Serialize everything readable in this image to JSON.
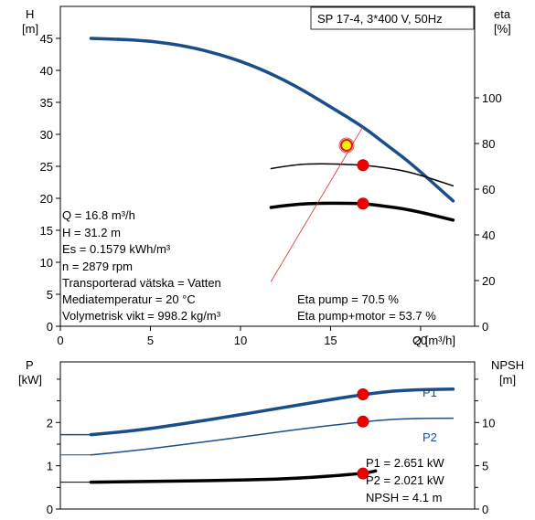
{
  "chart_data": [
    {
      "type": "line",
      "title": "SP 17-4, 3*400 V, 50Hz",
      "xlabel": "Q [m³/h]",
      "xlim": [
        0,
        23
      ],
      "xticks": [
        0,
        5,
        10,
        15,
        20
      ],
      "y_left": {
        "label_line1": "H",
        "label_line2": "[m]",
        "lim": [
          0,
          50
        ],
        "ticks": [
          0,
          5,
          10,
          15,
          20,
          25,
          30,
          35,
          40,
          45
        ]
      },
      "y_right": {
        "label_line1": "eta",
        "label_line2": "[%]",
        "lim": [
          0,
          140
        ],
        "ticks": [
          0,
          20,
          40,
          60,
          80,
          100
        ]
      },
      "series": [
        {
          "axis": "left",
          "color": "#1a4e8a",
          "width": 3.5,
          "x": [
            1.7,
            3,
            5,
            7,
            9,
            11,
            13,
            15,
            16.8,
            18,
            19.5,
            21.8
          ],
          "y": [
            45.0,
            44.9,
            44.6,
            43.8,
            42.4,
            40.4,
            37.7,
            34.3,
            31.2,
            28.6,
            25.4,
            19.6
          ]
        },
        {
          "axis": "right",
          "color": "#000000",
          "width": 1.5,
          "x": [
            11.7,
            13,
            14.5,
            16,
            16.8,
            18,
            19.5,
            21.8
          ],
          "y": [
            69,
            70.8,
            71.2,
            70.8,
            70.5,
            69.5,
            67.4,
            61.5
          ]
        },
        {
          "axis": "right",
          "color": "#000000",
          "width": 3.5,
          "x": [
            11.7,
            13,
            14.5,
            16,
            16.8,
            18,
            19.5,
            21.8
          ],
          "y": [
            52,
            53.4,
            53.9,
            53.8,
            53.7,
            52.6,
            50.9,
            46.5
          ]
        },
        {
          "axis": "left",
          "color": "#e03030",
          "width": 0.8,
          "x": [
            11.7,
            16.8
          ],
          "y": [
            7.0,
            31.2
          ]
        }
      ],
      "operating_point": {
        "q": 16.8,
        "h": 31.2,
        "eta_pump": 70.5,
        "eta_total": 53.7
      },
      "annotations_left": [
        "Q = 16.8 m³/h",
        "H = 31.2 m",
        "Es = 0.1579 kWh/m³",
        "n = 2879 rpm",
        "Transporterad vätska = Vatten",
        "Mediatemperatur = 20 °C",
        "Volymetrisk vikt = 998.2 kg/m³"
      ],
      "annotations_right": [
        "Eta pump = 70.5 %",
        "Eta pump+motor = 53.7 %"
      ]
    },
    {
      "type": "line",
      "xlim": [
        0,
        23
      ],
      "y_left": {
        "label_line1": "P",
        "label_line2": "[kW]",
        "lim": [
          0,
          3.4
        ],
        "ticks": [
          0,
          1,
          2
        ],
        "minor_ticks": [
          0.5,
          1.5,
          2.5,
          3
        ]
      },
      "y_right": {
        "label_line1": "NPSH",
        "label_line2": "[m]",
        "lim": [
          0,
          17
        ],
        "ticks": [
          0,
          5,
          10
        ],
        "minor_ticks": [
          2.5,
          7.5,
          12.5,
          15
        ]
      },
      "series": [
        {
          "name": "P1",
          "axis": "left",
          "color": "#1a4e8a",
          "width": 3.5,
          "x": [
            1.7,
            4,
            7,
            10,
            13,
            16.8,
            19,
            21.8
          ],
          "y": [
            1.72,
            1.8,
            1.98,
            2.18,
            2.39,
            2.651,
            2.75,
            2.77
          ]
        },
        {
          "name": "",
          "axis": "left",
          "color": "#1a4e8a",
          "width": 1.5,
          "x": [
            0,
            1.7
          ],
          "y": [
            1.72,
            1.72
          ]
        },
        {
          "name": "P2",
          "axis": "left",
          "color": "#1a4e8a",
          "width": 1.5,
          "x": [
            1.7,
            4,
            7,
            10,
            13,
            16.8,
            19,
            21.8
          ],
          "y": [
            1.25,
            1.34,
            1.5,
            1.66,
            1.83,
            2.021,
            2.09,
            2.1
          ]
        },
        {
          "name": "",
          "axis": "left",
          "color": "#1a4e8a",
          "width": 1.0,
          "x": [
            0,
            1.7
          ],
          "y": [
            1.25,
            1.25
          ]
        },
        {
          "name": "NPSH",
          "axis": "right",
          "color": "#000000",
          "width": 3.5,
          "x": [
            1.7,
            5,
            9,
            13,
            16.8,
            17.5
          ],
          "y": [
            3.1,
            3.2,
            3.3,
            3.5,
            4.1,
            4.4
          ]
        },
        {
          "name": "",
          "axis": "right",
          "color": "#000000",
          "width": 1.0,
          "x": [
            0,
            1.7
          ],
          "y": [
            3.1,
            3.1
          ]
        }
      ],
      "points": [
        {
          "axis": "left",
          "x": 16.8,
          "y": 2.651
        },
        {
          "axis": "left",
          "x": 16.8,
          "y": 2.021
        },
        {
          "axis": "right",
          "x": 16.8,
          "y": 4.1
        }
      ],
      "series_labels": [
        "P1",
        "P2"
      ],
      "annotations": [
        "P1 = 2.651 kW",
        "P2 = 2.021 kW",
        "NPSH = 4.1 m"
      ]
    }
  ]
}
